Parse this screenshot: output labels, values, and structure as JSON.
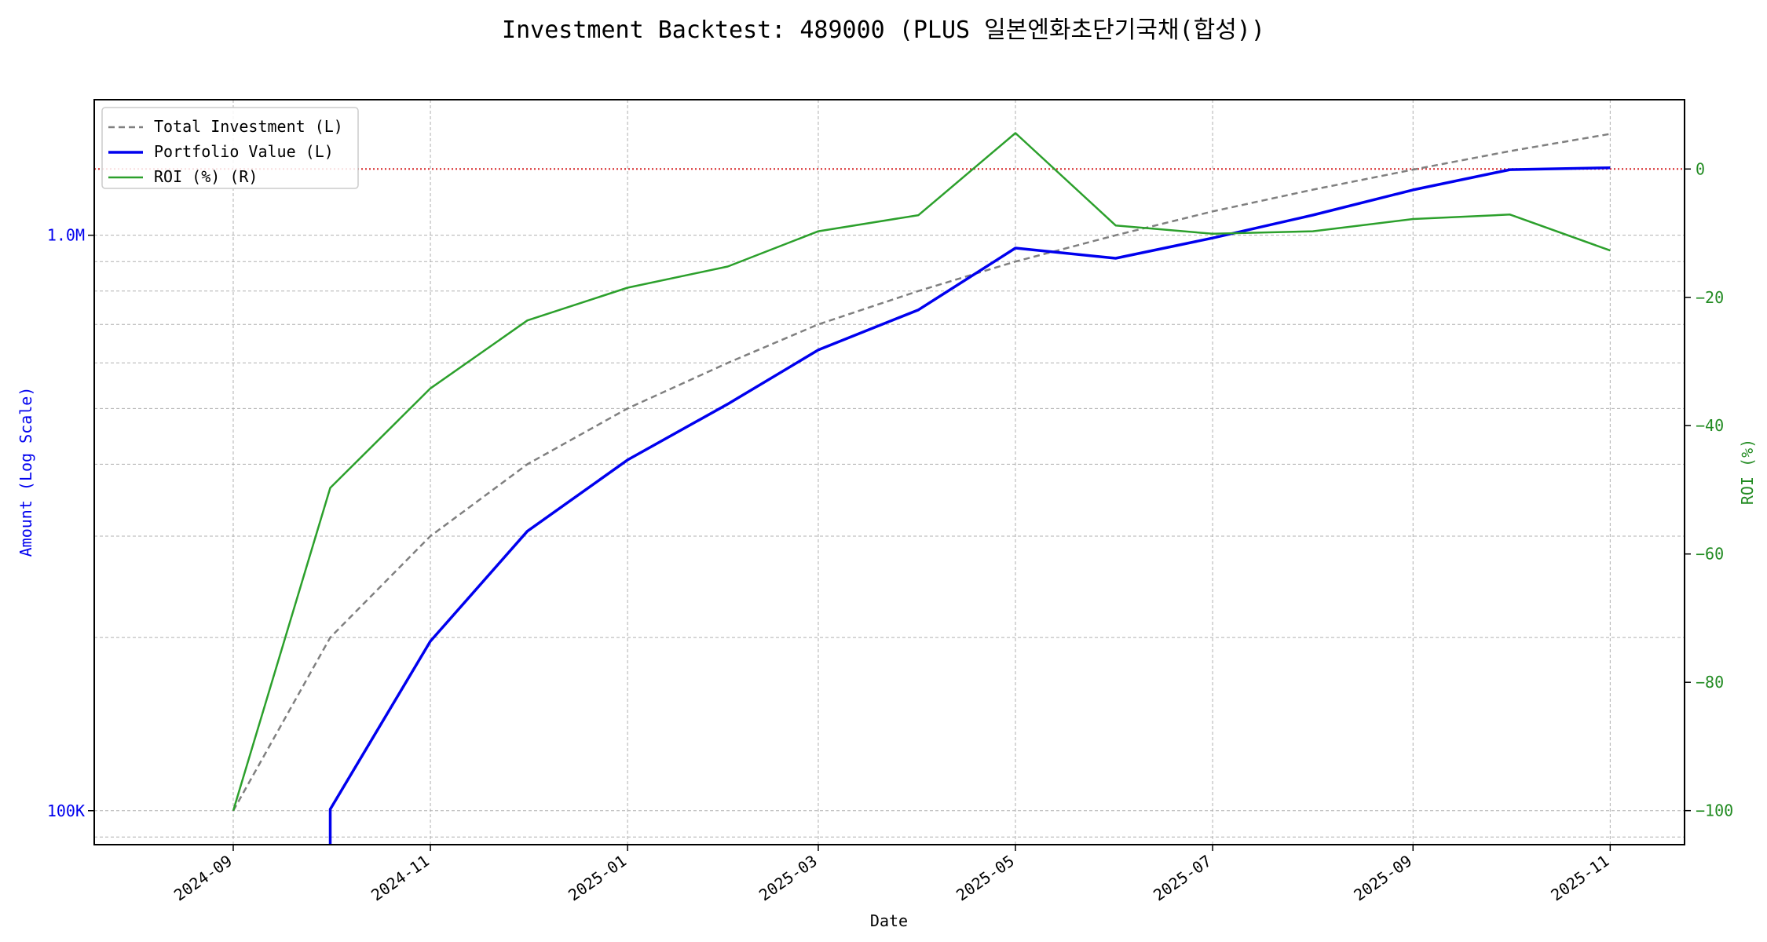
{
  "chart_data": {
    "type": "line",
    "title": "Investment Backtest: 489000 (PLUS 일본엔화초단기국채(합성))",
    "xlabel": "Date",
    "ylabel_left": "Amount (Log Scale)",
    "ylabel_right": "ROI (%)",
    "y_left_scale": "log",
    "y_left_lim": [
      87300,
      1720000
    ],
    "y_left_ticks": [
      {
        "value": 100000,
        "label": "100K"
      },
      {
        "value": 1000000,
        "label": "1.0M"
      }
    ],
    "y_right_lim": [
      -105.3,
      10.8
    ],
    "y_right_ticks": [
      0,
      -20,
      -40,
      -60,
      -80,
      -100
    ],
    "x_ticks": [
      "2024-09",
      "2024-11",
      "2025-01",
      "2025-03",
      "2025-05",
      "2025-07",
      "2025-09",
      "2025-11"
    ],
    "x_lim": [
      "2024-07-20",
      "2025-11-24"
    ],
    "grid": true,
    "legend_position": "top-left",
    "reference_line": {
      "axis": "right",
      "value": 0,
      "color": "#d62728"
    },
    "x": [
      "2024-09-01",
      "2024-10-01",
      "2024-11-01",
      "2024-12-01",
      "2025-01-01",
      "2025-02-01",
      "2025-03-01",
      "2025-04-01",
      "2025-05-01",
      "2025-06-01",
      "2025-07-01",
      "2025-08-01",
      "2025-09-01",
      "2025-10-01",
      "2025-11-01"
    ],
    "series": [
      {
        "name": "Total Investment (L)",
        "axis": "left",
        "color": "#808080",
        "style": "dashed",
        "values": [
          100000,
          200000,
          300000,
          400000,
          500000,
          600000,
          700000,
          800000,
          900000,
          1000000,
          1100000,
          1200000,
          1300000,
          1400000,
          1500000
        ]
      },
      {
        "name": "Portfolio Value (L)",
        "axis": "left",
        "color": "#0000ee",
        "style": "solid",
        "values": [
          0,
          100600,
          197000,
          306000,
          407000,
          509000,
          632000,
          742000,
          950000,
          912000,
          989000,
          1084000,
          1199000,
          1300000,
          1310000
        ]
      },
      {
        "name": "ROI (%) (R)",
        "axis": "right",
        "color": "#2ca02c",
        "style": "solid",
        "values": [
          -100,
          -49.7,
          -34.2,
          -23.6,
          -18.5,
          -15.2,
          -9.7,
          -7.2,
          5.6,
          -8.8,
          -10.1,
          -9.7,
          -7.8,
          -7.1,
          -12.7
        ]
      }
    ]
  }
}
